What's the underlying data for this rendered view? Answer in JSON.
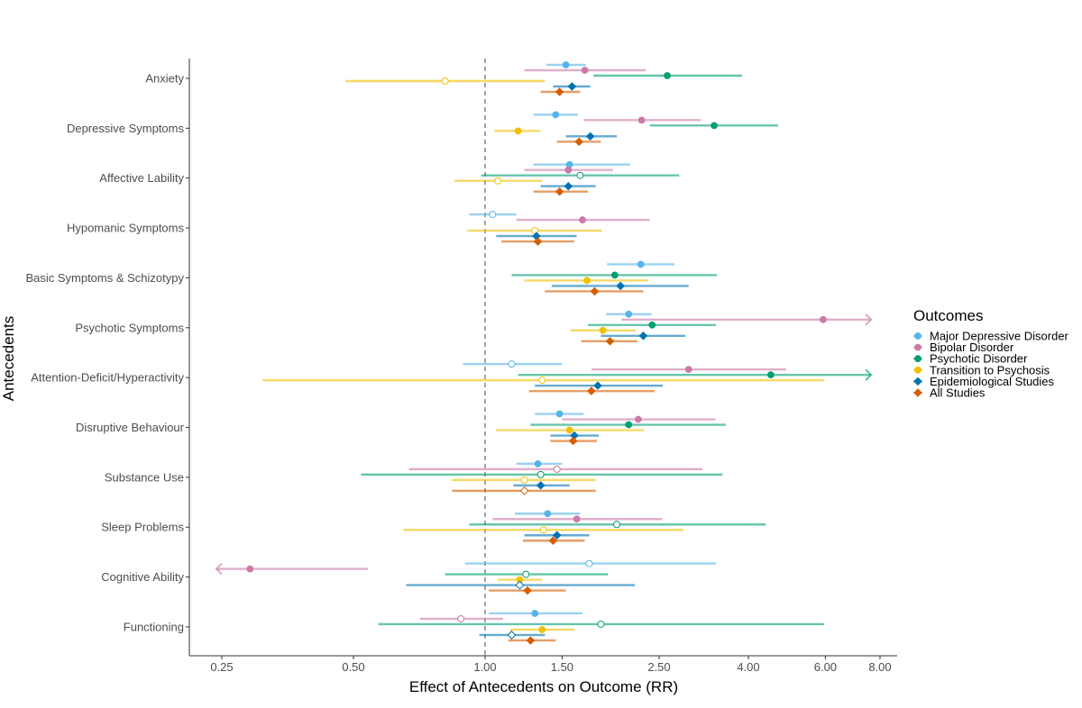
{
  "chart_data": {
    "type": "forest",
    "xlabel": "Effect of Antecedents on Outcome (RR)",
    "ylabel": "Antecedents",
    "xscale": "log",
    "xlim": [
      0.22,
      8.6
    ],
    "xticks": [
      0.25,
      0.5,
      1.0,
      1.5,
      2.5,
      4.0,
      6.0,
      8.0
    ],
    "xtick_labels": [
      "0.25",
      "0.50",
      "1.00",
      "1.50",
      "2.50",
      "4.00",
      "6.00",
      "8.00"
    ],
    "reference_line": 1.0,
    "legend": {
      "title": "Outcomes",
      "placement": "right"
    },
    "series": [
      {
        "name": "Major Depressive Disorder",
        "color": "#56B4E9",
        "shape": "circle"
      },
      {
        "name": "Bipolar Disorder",
        "color": "#CC79A7",
        "shape": "circle"
      },
      {
        "name": "Psychotic Disorder",
        "color": "#009E73",
        "shape": "circle"
      },
      {
        "name": "Transition to Psychosis",
        "color": "#F0C000",
        "shape": "circle"
      },
      {
        "name": "Epidemiological Studies",
        "color": "#0072B2",
        "shape": "diamond"
      },
      {
        "name": "All Studies",
        "color": "#D55E00",
        "shape": "diamond"
      }
    ],
    "rows": [
      {
        "label": "Anxiety",
        "values": [
          {
            "est": 1.53,
            "lo": 1.38,
            "hi": 1.7,
            "sig": true
          },
          {
            "est": 1.69,
            "lo": 1.23,
            "hi": 2.33,
            "sig": true
          },
          {
            "est": 2.61,
            "lo": 1.77,
            "hi": 3.87,
            "sig": true
          },
          {
            "est": 0.81,
            "lo": 0.48,
            "hi": 1.37,
            "sig": false
          },
          {
            "est": 1.58,
            "lo": 1.43,
            "hi": 1.74,
            "sig": true
          },
          {
            "est": 1.48,
            "lo": 1.34,
            "hi": 1.65,
            "sig": true
          }
        ]
      },
      {
        "label": "Depressive Symptoms",
        "values": [
          {
            "est": 1.45,
            "lo": 1.29,
            "hi": 1.63,
            "sig": true
          },
          {
            "est": 2.28,
            "lo": 1.68,
            "hi": 3.11,
            "sig": true
          },
          {
            "est": 3.34,
            "lo": 2.38,
            "hi": 4.68,
            "sig": true
          },
          {
            "est": 1.19,
            "lo": 1.05,
            "hi": 1.34,
            "sig": true
          },
          {
            "est": 1.74,
            "lo": 1.53,
            "hi": 2.0,
            "sig": true
          },
          {
            "est": 1.64,
            "lo": 1.46,
            "hi": 1.84,
            "sig": true
          }
        ]
      },
      {
        "label": "Affective Lability",
        "values": [
          {
            "est": 1.56,
            "lo": 1.29,
            "hi": 2.15,
            "sig": true
          },
          {
            "est": 1.55,
            "lo": 1.23,
            "hi": 1.96,
            "sig": true
          },
          {
            "est": 1.65,
            "lo": 0.98,
            "hi": 2.78,
            "sig": false
          },
          {
            "est": 1.07,
            "lo": 0.85,
            "hi": 1.35,
            "sig": false
          },
          {
            "est": 1.55,
            "lo": 1.34,
            "hi": 1.79,
            "sig": true
          },
          {
            "est": 1.48,
            "lo": 1.29,
            "hi": 1.72,
            "sig": true
          }
        ]
      },
      {
        "label": "Hypomanic Symptoms",
        "values": [
          {
            "est": 1.04,
            "lo": 0.92,
            "hi": 1.18,
            "sig": false
          },
          {
            "est": 1.67,
            "lo": 1.18,
            "hi": 2.38,
            "sig": true
          },
          null,
          {
            "est": 1.3,
            "lo": 0.91,
            "hi": 1.85,
            "sig": false
          },
          {
            "est": 1.31,
            "lo": 1.06,
            "hi": 1.62,
            "sig": true
          },
          {
            "est": 1.32,
            "lo": 1.09,
            "hi": 1.6,
            "sig": true
          }
        ]
      },
      {
        "label": "Basic Symptoms & Schizotypy",
        "values": [
          {
            "est": 2.27,
            "lo": 1.9,
            "hi": 2.71,
            "sig": true
          },
          null,
          {
            "est": 1.98,
            "lo": 1.15,
            "hi": 3.39,
            "sig": true
          },
          {
            "est": 1.71,
            "lo": 1.23,
            "hi": 2.36,
            "sig": true
          },
          {
            "est": 2.04,
            "lo": 1.42,
            "hi": 2.92,
            "sig": true
          },
          {
            "est": 1.78,
            "lo": 1.37,
            "hi": 2.3,
            "sig": true
          }
        ]
      },
      {
        "label": "Psychotic Symptoms",
        "values": [
          {
            "est": 2.13,
            "lo": 1.89,
            "hi": 2.4,
            "sig": true
          },
          {
            "est": 5.93,
            "lo": 2.05,
            "hi": 8.0,
            "sig": true,
            "truncated_hi": true
          },
          {
            "est": 2.41,
            "lo": 1.72,
            "hi": 3.37,
            "sig": true
          },
          {
            "est": 1.86,
            "lo": 1.57,
            "hi": 2.21,
            "sig": true
          },
          {
            "est": 2.3,
            "lo": 1.84,
            "hi": 2.87,
            "sig": true
          },
          {
            "est": 1.93,
            "lo": 1.66,
            "hi": 2.23,
            "sig": true
          }
        ]
      },
      {
        "label": "Attention-Deficit/Hyperactivity",
        "values": [
          {
            "est": 1.15,
            "lo": 0.89,
            "hi": 1.5,
            "sig": false
          },
          {
            "est": 2.92,
            "lo": 1.75,
            "hi": 4.88,
            "sig": true
          },
          {
            "est": 4.5,
            "lo": 1.19,
            "hi": 8.0,
            "sig": true,
            "truncated_hi": true
          },
          {
            "est": 1.35,
            "lo": 0.31,
            "hi": 5.96,
            "sig": false
          },
          {
            "est": 1.81,
            "lo": 1.3,
            "hi": 2.55,
            "sig": true
          },
          {
            "est": 1.75,
            "lo": 1.26,
            "hi": 2.44,
            "sig": true
          }
        ]
      },
      {
        "label": "Disruptive Behaviour",
        "values": [
          {
            "est": 1.48,
            "lo": 1.3,
            "hi": 1.68,
            "sig": true
          },
          {
            "est": 2.24,
            "lo": 1.5,
            "hi": 3.36,
            "sig": true
          },
          {
            "est": 2.13,
            "lo": 1.27,
            "hi": 3.55,
            "sig": true
          },
          {
            "est": 1.56,
            "lo": 1.06,
            "hi": 2.31,
            "sig": true
          },
          {
            "est": 1.6,
            "lo": 1.41,
            "hi": 1.82,
            "sig": true
          },
          {
            "est": 1.59,
            "lo": 1.41,
            "hi": 1.8,
            "sig": true
          }
        ]
      },
      {
        "label": "Substance Use",
        "values": [
          {
            "est": 1.32,
            "lo": 1.18,
            "hi": 1.5,
            "sig": true
          },
          {
            "est": 1.46,
            "lo": 0.67,
            "hi": 3.14,
            "sig": false
          },
          {
            "est": 1.34,
            "lo": 0.52,
            "hi": 3.49,
            "sig": false
          },
          {
            "est": 1.23,
            "lo": 0.84,
            "hi": 1.79,
            "sig": false
          },
          {
            "est": 1.34,
            "lo": 1.16,
            "hi": 1.56,
            "sig": true
          },
          {
            "est": 1.23,
            "lo": 0.84,
            "hi": 1.79,
            "sig": false
          }
        ]
      },
      {
        "label": "Sleep Problems",
        "values": [
          {
            "est": 1.39,
            "lo": 1.17,
            "hi": 1.65,
            "sig": true
          },
          {
            "est": 1.62,
            "lo": 1.04,
            "hi": 2.54,
            "sig": true
          },
          {
            "est": 2.0,
            "lo": 0.92,
            "hi": 4.38,
            "sig": false
          },
          {
            "est": 1.36,
            "lo": 0.65,
            "hi": 2.84,
            "sig": false
          },
          {
            "est": 1.46,
            "lo": 1.23,
            "hi": 1.73,
            "sig": true
          },
          {
            "est": 1.43,
            "lo": 1.22,
            "hi": 1.69,
            "sig": true
          }
        ]
      },
      {
        "label": "Cognitive Ability",
        "values": [
          {
            "est": 1.73,
            "lo": 0.9,
            "hi": 3.37,
            "sig": false
          },
          {
            "est": 0.29,
            "lo": 0.25,
            "hi": 0.54,
            "sig": true,
            "truncated_lo": true
          },
          {
            "est": 1.24,
            "lo": 0.81,
            "hi": 1.91,
            "sig": false
          },
          {
            "est": 1.2,
            "lo": 1.07,
            "hi": 1.35,
            "sig": true
          },
          {
            "est": 1.2,
            "lo": 0.66,
            "hi": 2.2,
            "sig": false
          },
          {
            "est": 1.25,
            "lo": 1.02,
            "hi": 1.53,
            "sig": true
          }
        ]
      },
      {
        "label": "Functioning",
        "values": [
          {
            "est": 1.3,
            "lo": 1.02,
            "hi": 1.67,
            "sig": true
          },
          {
            "est": 0.88,
            "lo": 0.71,
            "hi": 1.1,
            "sig": false
          },
          {
            "est": 1.84,
            "lo": 0.57,
            "hi": 5.96,
            "sig": false
          },
          {
            "est": 1.35,
            "lo": 1.14,
            "hi": 1.6,
            "sig": true
          },
          {
            "est": 1.15,
            "lo": 0.97,
            "hi": 1.37,
            "sig": false
          },
          {
            "est": 1.27,
            "lo": 1.13,
            "hi": 1.45,
            "sig": true
          }
        ]
      }
    ]
  }
}
